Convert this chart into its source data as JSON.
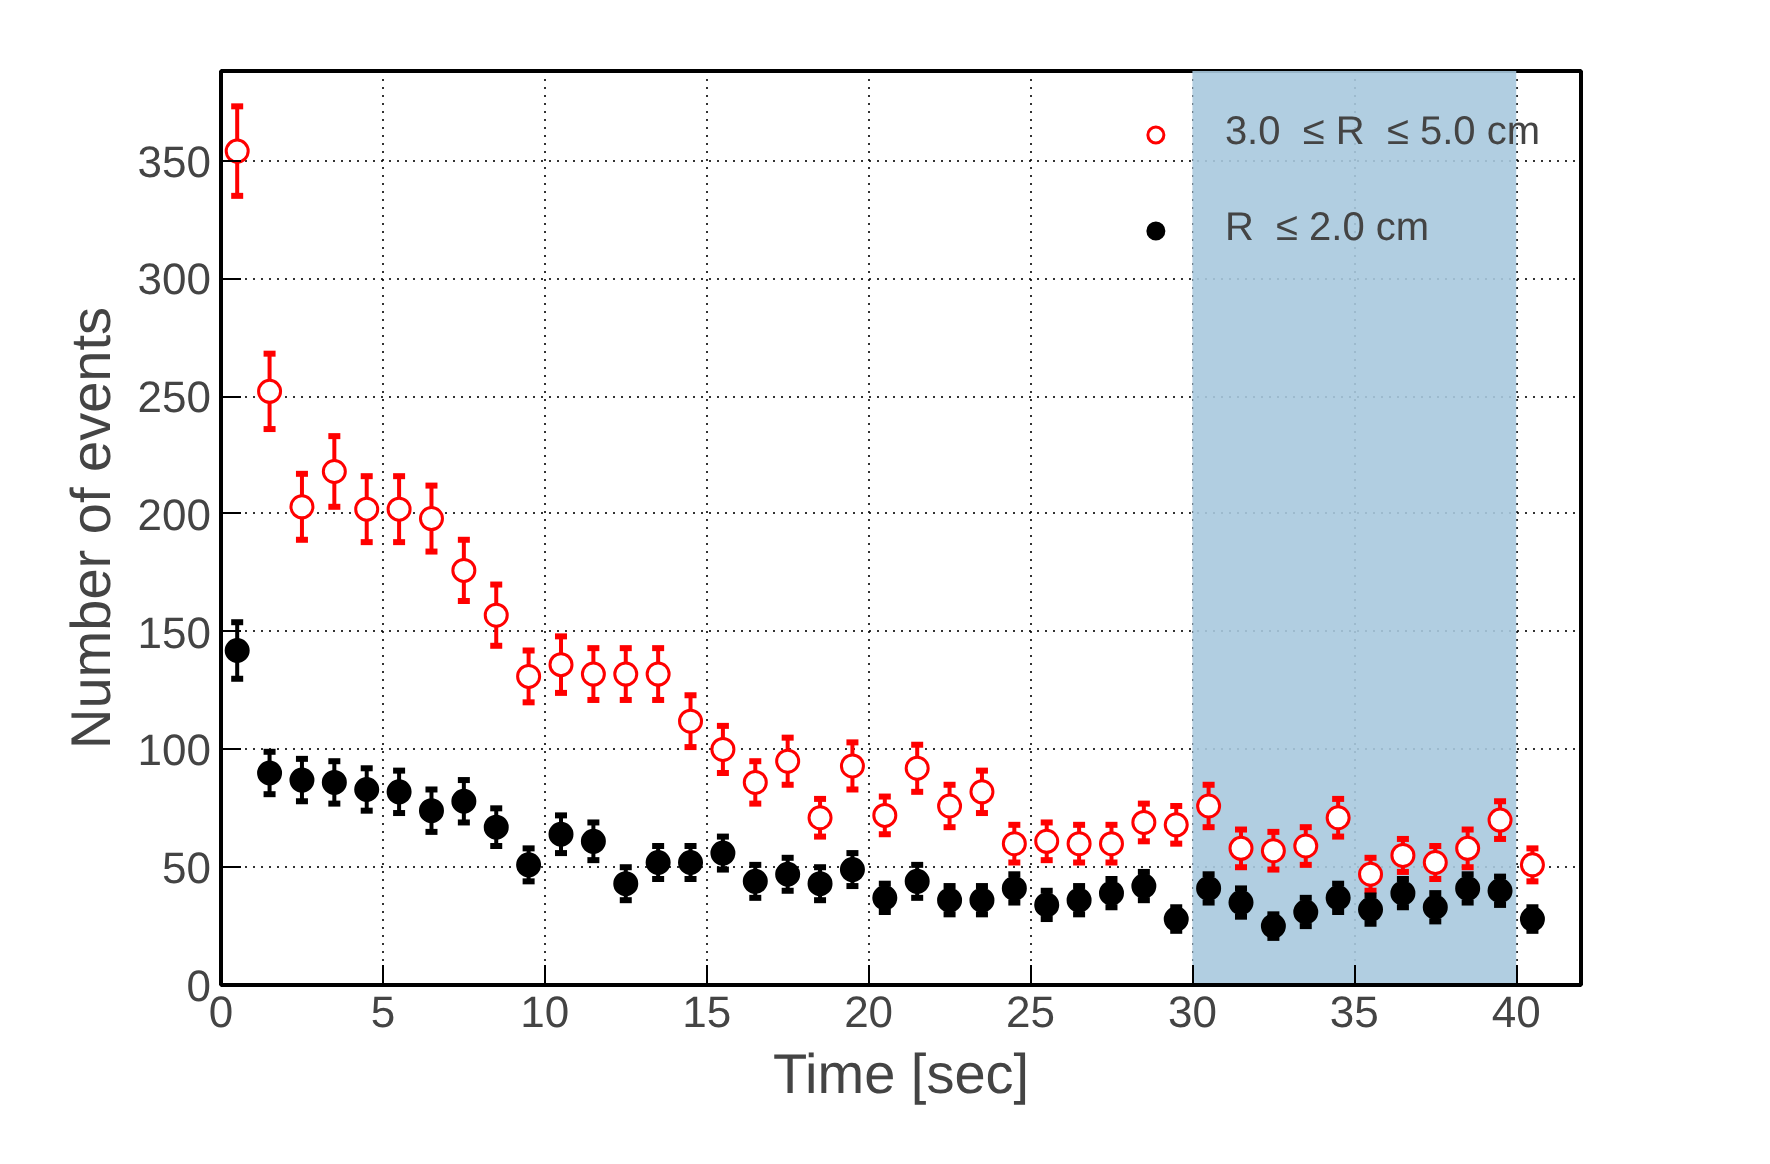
{
  "chart_data": {
    "type": "scatter",
    "xlabel": "Time [sec]",
    "ylabel": "Number of events",
    "x": [
      0.5,
      1.5,
      2.5,
      3.5,
      4.5,
      5.5,
      6.5,
      7.5,
      8.5,
      9.5,
      10.5,
      11.5,
      12.5,
      13.5,
      14.5,
      15.5,
      16.5,
      17.5,
      18.5,
      19.5,
      20.5,
      21.5,
      22.5,
      23.5,
      24.5,
      25.5,
      26.5,
      27.5,
      28.5,
      29.5,
      30.5,
      31.5,
      32.5,
      33.5,
      34.5,
      35.5,
      36.5,
      37.5,
      38.5,
      39.5,
      40.5
    ],
    "series": [
      {
        "name": "3.0  ≤ R  ≤ 5.0 cm",
        "color": "#ff0000",
        "values": [
          354,
          252,
          203,
          218,
          202,
          202,
          198,
          176,
          157,
          131,
          136,
          132,
          132,
          132,
          112,
          100,
          86,
          95,
          71,
          93,
          72,
          92,
          76,
          82,
          60,
          61,
          60,
          60,
          69,
          68,
          76,
          58,
          57,
          59,
          71,
          47,
          55,
          52,
          58,
          70,
          51
        ],
        "errors": [
          19,
          16,
          14,
          15,
          14,
          14,
          14,
          13,
          13,
          11,
          12,
          11,
          11,
          11,
          11,
          10,
          9,
          10,
          8,
          10,
          8,
          10,
          9,
          9,
          8,
          8,
          8,
          8,
          8,
          8,
          9,
          8,
          8,
          8,
          8,
          7,
          7,
          7,
          8,
          8,
          7
        ]
      },
      {
        "name": "R  ≤ 2.0 cm",
        "color": "#000000",
        "values": [
          142,
          90,
          87,
          86,
          83,
          82,
          74,
          78,
          67,
          51,
          64,
          61,
          43,
          52,
          52,
          56,
          44,
          47,
          43,
          49,
          37,
          44,
          36,
          36,
          41,
          34,
          36,
          39,
          42,
          28,
          41,
          35,
          25,
          31,
          37,
          32,
          39,
          33,
          41,
          40,
          28
        ],
        "errors": [
          12,
          9,
          9,
          9,
          9,
          9,
          9,
          9,
          8,
          7,
          8,
          8,
          7,
          7,
          7,
          7,
          7,
          7,
          7,
          7,
          6,
          7,
          6,
          6,
          6,
          6,
          6,
          6,
          6,
          5,
          6,
          6,
          5,
          6,
          6,
          6,
          6,
          6,
          6,
          6,
          5
        ]
      }
    ],
    "xlim": [
      0,
      42
    ],
    "ylim": [
      0,
      388
    ],
    "xticks": [
      0,
      5,
      10,
      15,
      20,
      25,
      30,
      35,
      40
    ],
    "yticks": [
      0,
      50,
      100,
      150,
      200,
      250,
      300,
      350
    ],
    "bands": [
      {
        "axis": "x",
        "from": 30,
        "to": 40,
        "color": "#a9c9de"
      }
    ],
    "grid": true,
    "legend": "top right",
    "marker": "circle"
  }
}
